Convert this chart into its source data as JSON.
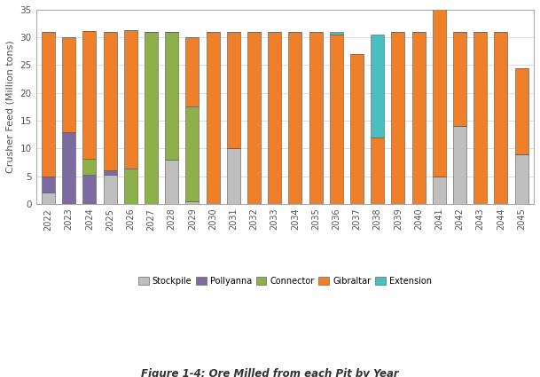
{
  "title": "Figure 1-4: Ore Milled from each Pit by Year",
  "ylabel": "Crusher Feed (Million tons)",
  "ylim": [
    0,
    35
  ],
  "yticks": [
    0,
    5,
    10,
    15,
    20,
    25,
    30,
    35
  ],
  "years": [
    2022,
    2023,
    2024,
    2025,
    2026,
    2027,
    2028,
    2029,
    2030,
    2031,
    2032,
    2033,
    2034,
    2035,
    2036,
    2037,
    2038,
    2039,
    2040,
    2041,
    2042,
    2043,
    2044,
    2045
  ],
  "stockpile": [
    2,
    0,
    0,
    5.3,
    0,
    0,
    8,
    0.5,
    0,
    10,
    0,
    0,
    0,
    0,
    0,
    0,
    0,
    0,
    0,
    5,
    14,
    0,
    0,
    9
  ],
  "pollyanna": [
    3,
    13,
    5.2,
    0.7,
    0,
    0,
    0,
    0,
    0,
    0,
    0,
    0,
    0,
    0,
    0,
    0,
    0,
    0,
    0,
    0,
    0,
    0,
    0,
    0
  ],
  "connector": [
    0,
    0,
    3,
    0,
    6.3,
    31,
    23,
    17,
    0,
    0,
    0,
    0,
    0,
    0,
    0,
    0,
    0,
    0,
    0,
    0,
    0,
    0,
    0,
    0
  ],
  "gibraltar": [
    26,
    17,
    23,
    25,
    25,
    0,
    0,
    12.5,
    31,
    21,
    31,
    31,
    31,
    31,
    30.5,
    27,
    12,
    31,
    31,
    31,
    17,
    31,
    31,
    15.5
  ],
  "extension": [
    0,
    0,
    0,
    0,
    0,
    0,
    0,
    0,
    0,
    0,
    0,
    0,
    0,
    0,
    0.5,
    0,
    18.5,
    0,
    0,
    0,
    0,
    0,
    0,
    0
  ],
  "colors": {
    "stockpile": "#bfbfbf",
    "pollyanna": "#7c6ba0",
    "connector": "#8db04a",
    "gibraltar": "#f07f2a",
    "extension": "#4abfbf"
  },
  "bar_width": 0.65,
  "figsize": [
    6.09,
    4.25
  ],
  "dpi": 100
}
